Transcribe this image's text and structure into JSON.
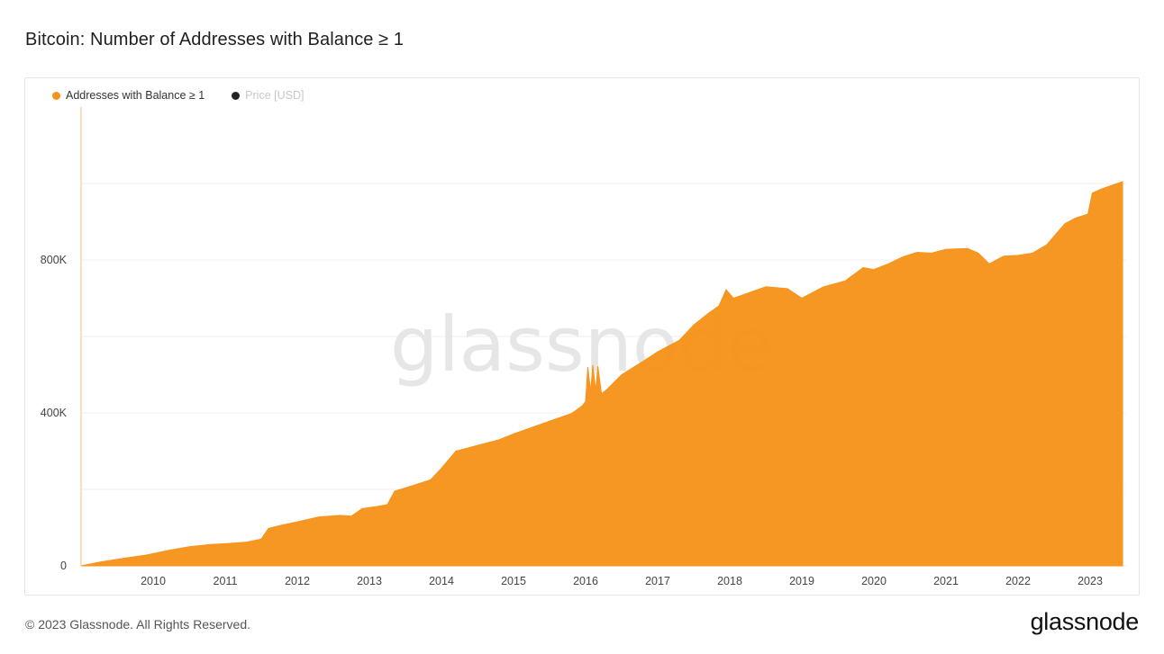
{
  "page": {
    "title": "Bitcoin: Number of Addresses with Balance ≥ 1",
    "copyright": "© 2023 Glassnode. All Rights Reserved.",
    "logo": "glassnode",
    "watermark": "glassnode"
  },
  "legend": {
    "items": [
      {
        "label": "Addresses with Balance ≥ 1",
        "color": "#f7931a",
        "active": true
      },
      {
        "label": "Price [USD]",
        "color": "#222222",
        "active": false
      }
    ]
  },
  "chart_data": {
    "type": "area",
    "title": "Bitcoin: Number of Addresses with Balance ≥ 1",
    "xlabel": "",
    "ylabel": "",
    "color": "#f7931a",
    "x_ticks": [
      "2010",
      "2011",
      "2012",
      "2013",
      "2014",
      "2015",
      "2016",
      "2017",
      "2018",
      "2019",
      "2020",
      "2021",
      "2022",
      "2023"
    ],
    "y_ticks": [
      {
        "value": 0,
        "label": "0"
      },
      {
        "value": 400000,
        "label": "400K"
      },
      {
        "value": 800000,
        "label": "800K"
      }
    ],
    "y_gridlines": [
      0,
      200000,
      400000,
      600000,
      800000,
      1000000
    ],
    "xlim": [
      2009.0,
      2023.5
    ],
    "ylim": [
      0,
      1200000
    ],
    "grid": true,
    "legend_position": "top-left",
    "series": [
      {
        "name": "Addresses with Balance ≥ 1",
        "x": [
          2009.0,
          2009.3,
          2009.6,
          2009.9,
          2010.2,
          2010.5,
          2010.8,
          2011.0,
          2011.3,
          2011.5,
          2011.6,
          2011.75,
          2012.0,
          2012.3,
          2012.6,
          2012.75,
          2012.9,
          2013.1,
          2013.25,
          2013.35,
          2013.6,
          2013.85,
          2014.0,
          2014.2,
          2014.5,
          2014.8,
          2015.0,
          2015.3,
          2015.6,
          2015.8,
          2015.95,
          2016.0,
          2016.03,
          2016.07,
          2016.1,
          2016.14,
          2016.17,
          2016.22,
          2016.3,
          2016.5,
          2016.8,
          2017.0,
          2017.3,
          2017.5,
          2017.7,
          2017.85,
          2017.95,
          2018.05,
          2018.2,
          2018.5,
          2018.8,
          2019.0,
          2019.3,
          2019.6,
          2019.85,
          2020.0,
          2020.2,
          2020.4,
          2020.6,
          2020.8,
          2021.0,
          2021.3,
          2021.45,
          2021.6,
          2021.8,
          2022.0,
          2022.2,
          2022.4,
          2022.5,
          2022.65,
          2022.8,
          2022.97,
          2023.03,
          2023.15,
          2023.3,
          2023.45
        ],
        "values": [
          0,
          11000,
          20000,
          28000,
          40000,
          50000,
          56000,
          58000,
          62000,
          70000,
          98000,
          105000,
          115000,
          128000,
          132000,
          130000,
          150000,
          155000,
          160000,
          195000,
          210000,
          225000,
          255000,
          300000,
          315000,
          330000,
          345000,
          365000,
          385000,
          398000,
          418000,
          430000,
          520000,
          455000,
          525000,
          458000,
          522000,
          450000,
          462000,
          500000,
          535000,
          560000,
          590000,
          630000,
          660000,
          680000,
          722000,
          700000,
          710000,
          730000,
          725000,
          700000,
          730000,
          745000,
          780000,
          775000,
          790000,
          808000,
          820000,
          818000,
          828000,
          830000,
          818000,
          790000,
          810000,
          812000,
          818000,
          840000,
          862000,
          895000,
          910000,
          920000,
          975000,
          985000,
          995000,
          1005000
        ]
      }
    ]
  }
}
